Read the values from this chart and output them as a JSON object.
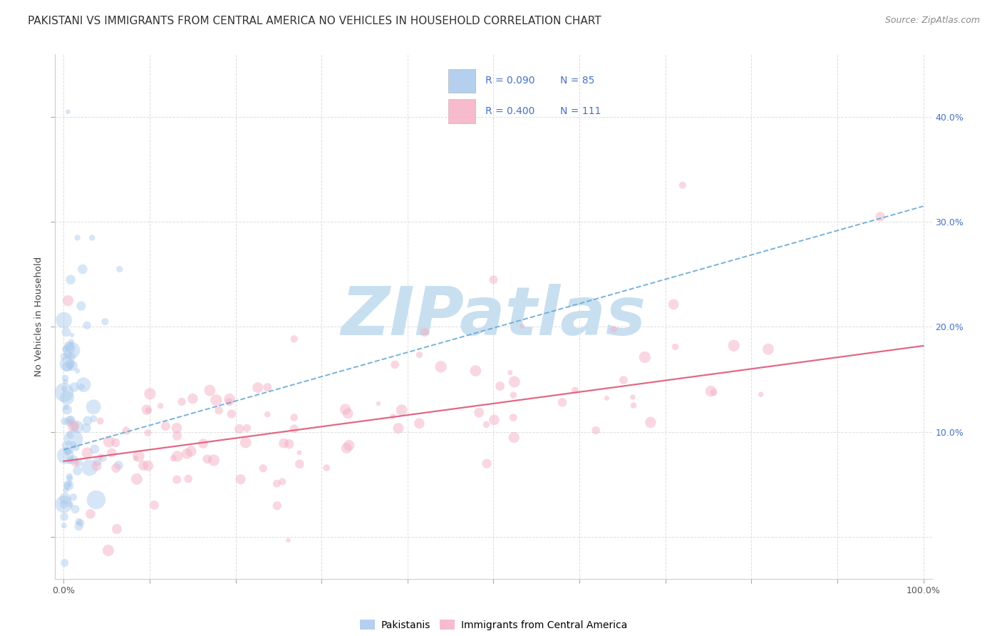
{
  "title": "PAKISTANI VS IMMIGRANTS FROM CENTRAL AMERICA NO VEHICLES IN HOUSEHOLD CORRELATION CHART",
  "source": "Source: ZipAtlas.com",
  "ylabel": "No Vehicles in Household",
  "xlim": [
    -0.01,
    1.01
  ],
  "ylim": [
    -0.04,
    0.46
  ],
  "xticks": [
    0.0,
    0.1,
    0.2,
    0.3,
    0.4,
    0.5,
    0.6,
    0.7,
    0.8,
    0.9,
    1.0
  ],
  "yticks": [
    0.0,
    0.1,
    0.2,
    0.3,
    0.4
  ],
  "blue_R": 0.09,
  "blue_N": 85,
  "pink_R": 0.4,
  "pink_N": 111,
  "blue_scatter_color": "#A8C8EC",
  "pink_scatter_color": "#F5B0C5",
  "blue_line_color": "#6AAAD4",
  "pink_line_color": "#E06080",
  "legend_label_blue": "Pakistanis",
  "legend_label_pink": "Immigrants from Central America",
  "watermark_text": "ZIPatlas",
  "watermark_color": "#C8DFF0",
  "title_fontsize": 11,
  "source_fontsize": 9,
  "axis_label_fontsize": 9.5,
  "tick_fontsize": 9,
  "legend_fontsize": 10,
  "right_tick_color": "#4472C4",
  "blue_trend_x0": 0.0,
  "blue_trend_y0": 0.083,
  "blue_trend_x1": 1.0,
  "blue_trend_y1": 0.315,
  "pink_trend_x0": 0.0,
  "pink_trend_y0": 0.072,
  "pink_trend_x1": 1.0,
  "pink_trend_y1": 0.182
}
